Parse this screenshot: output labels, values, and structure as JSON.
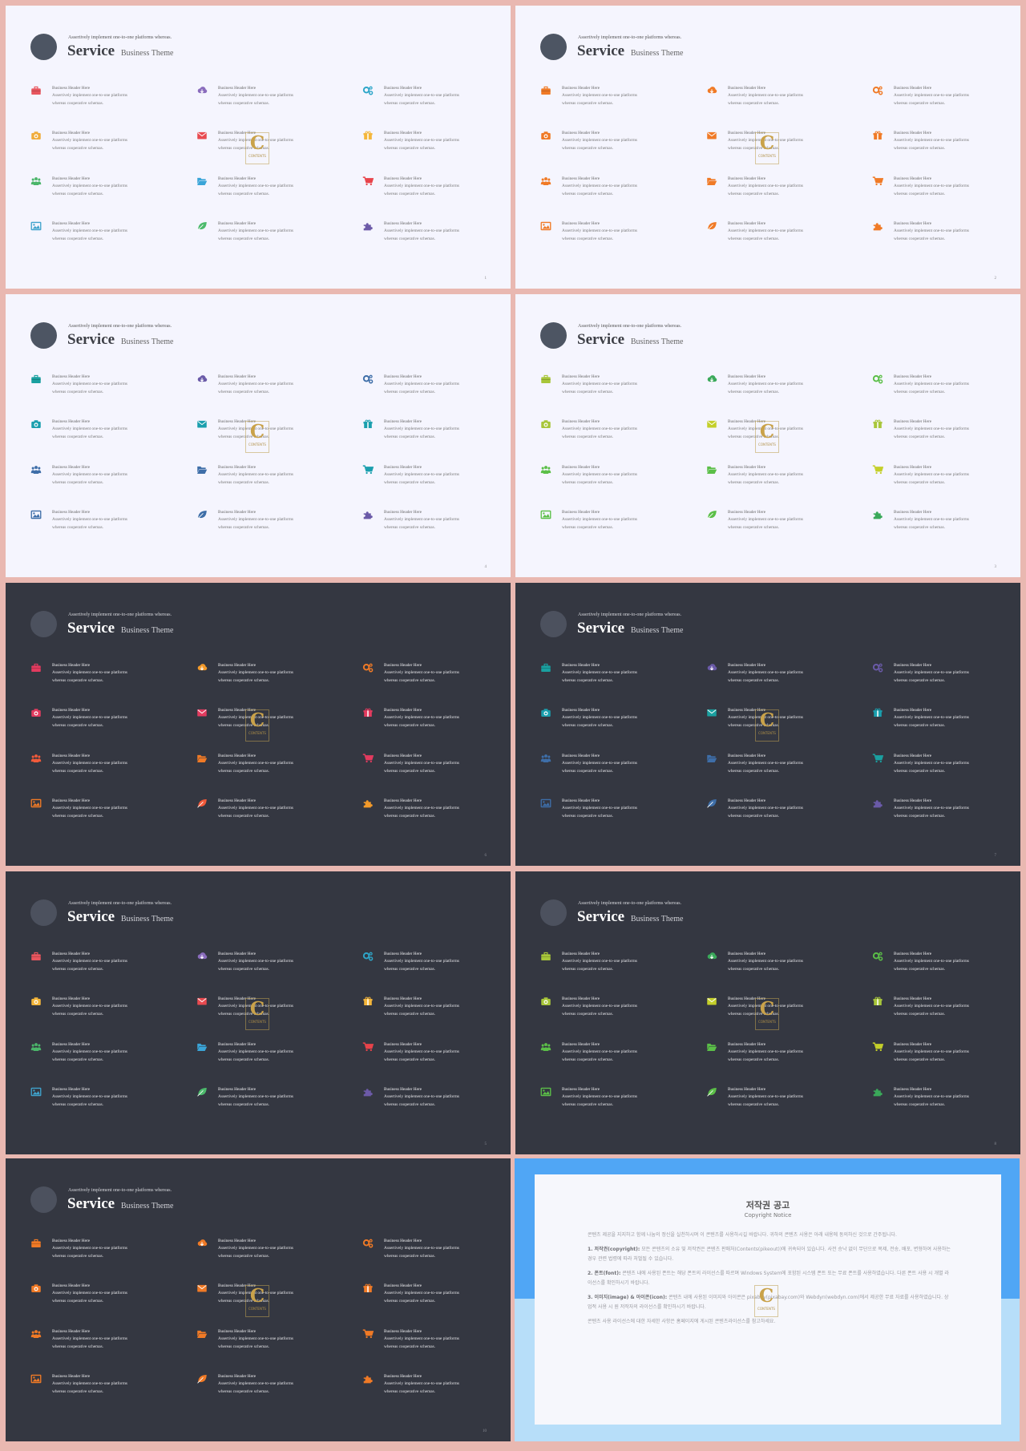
{
  "slide_template": {
    "subtitle": "Assertively implement one-to-one platforms whereas.",
    "title": "Service",
    "theme": "Business Theme",
    "item_header": "Business Header Here",
    "item_body_line1": "Assertively implement one-to-one platforms",
    "item_body_line2": "whereas cooperative schemas."
  },
  "watermark": {
    "letter": "C",
    "text": "CONTENTS"
  },
  "icons": [
    "briefcase-icon",
    "cloud-download-icon",
    "gears-icon",
    "camera-icon",
    "envelope-icon",
    "gift-icon",
    "users-icon",
    "folder-open-icon",
    "shopping-cart-icon",
    "image-icon",
    "leaf-icon",
    "puzzle-icon"
  ],
  "slides": [
    {
      "page": "1",
      "theme": "light",
      "colors": [
        "#e8565e",
        "#8a6cbd",
        "#2ea6c9",
        "#f0ac3c",
        "#e84a50",
        "#f4b63a",
        "#4bb56a",
        "#3aa5d8",
        "#e8434a",
        "#3fa3cc",
        "#4cba6c",
        "#6c5aa8"
      ]
    },
    {
      "page": "2",
      "theme": "light",
      "colors": [
        "#f07a26",
        "#f07a26",
        "#f07a26",
        "#f07a26",
        "#f07a26",
        "#f07a26",
        "#f07a26",
        "#f07a26",
        "#f07a26",
        "#f07a26",
        "#f07a26",
        "#f07a26"
      ]
    },
    {
      "page": "4",
      "theme": "light",
      "colors": [
        "#1aa0a0",
        "#6a5aa8",
        "#3e6ea8",
        "#1a9fae",
        "#1a9fae",
        "#1a9fae",
        "#3e6ea8",
        "#3e6ea8",
        "#1a9fae",
        "#3e6ea8",
        "#3e6ea8",
        "#6a5aa8"
      ]
    },
    {
      "page": "3",
      "theme": "light",
      "colors": [
        "#a8c63a",
        "#3aa95a",
        "#5bbf48",
        "#a8c63a",
        "#c4cf2a",
        "#a8c63a",
        "#5bbf48",
        "#5bbf48",
        "#c4cf2a",
        "#5bbf48",
        "#5bbf48",
        "#3aa95a"
      ]
    },
    {
      "page": "6",
      "theme": "dark",
      "colors": [
        "#e33b5f",
        "#f39a2a",
        "#f07a26",
        "#e33b5f",
        "#e33b5f",
        "#e33b5f",
        "#f25a3a",
        "#f07a26",
        "#e33b5f",
        "#f07a26",
        "#f25a3a",
        "#f39a2a"
      ]
    },
    {
      "page": "7",
      "theme": "dark",
      "colors": [
        "#1aa0a0",
        "#6a5aa8",
        "#6a5aa8",
        "#1a9fae",
        "#1aa0a0",
        "#1a9fae",
        "#3e6ea8",
        "#3e6ea8",
        "#1aa0a0",
        "#3e6ea8",
        "#3e6ea8",
        "#6a5aa8"
      ]
    },
    {
      "page": "5",
      "theme": "dark",
      "colors": [
        "#e8565e",
        "#8a6cbd",
        "#2ea6c9",
        "#f4b63a",
        "#e84a50",
        "#f4b63a",
        "#4bb56a",
        "#3aa5d8",
        "#e8434a",
        "#3fa3cc",
        "#4cba6c",
        "#6c5aa8"
      ]
    },
    {
      "page": "8",
      "theme": "dark",
      "colors": [
        "#a8c63a",
        "#3aa95a",
        "#5bbf48",
        "#a8c63a",
        "#c4cf2a",
        "#a8c63a",
        "#5bbf48",
        "#5bbf48",
        "#c4cf2a",
        "#5bbf48",
        "#5bbf48",
        "#3aa95a"
      ]
    },
    {
      "page": "10",
      "theme": "dark",
      "colors": [
        "#f07a26",
        "#f07a26",
        "#f07a26",
        "#f07a26",
        "#f07a26",
        "#f07a26",
        "#f07a26",
        "#f07a26",
        "#f07a26",
        "#f07a26",
        "#f07a26",
        "#f07a26"
      ]
    }
  ],
  "copyright": {
    "title": "저작권 공고",
    "subtitle": "Copyright Notice",
    "intro": "콘텐츠 제공을 지지하고 함께 나눔의 정신을 실천하시며 이 콘텐츠를 사용하시길 바랍니다. 귀하의 콘텐츠 사용은 아래 내용에 동의하신 것으로 간주됩니다.",
    "p1_label": "1. 저작권(copyright):",
    "p1": " 모든 콘텐츠의 소유 및 저작권은 콘텐츠 판매처(Contents(pikeout))에 귀속되어 있습니다. 사전 승낙 없이 무단으로 복제, 전송, 배포, 변형하여 사용하는 경우 관련 법령에 따라 처벌될 수 있습니다.",
    "p2_label": "2. 폰트(font):",
    "p2": " 콘텐츠 내에 사용된 폰트는 해당 폰트의 라이선스를 따르며 Windows System에 포함된 시스템 폰트 또는 무료 폰트를 사용하였습니다. 다른 폰트 사용 시 개별 라이선스를 확인하시기 바랍니다.",
    "p3_label": "3. 이미지(image) & 아이콘(icon):",
    "p3": " 콘텐츠 내에 사용된 이미지와 아이콘은 pixabay(pixabay.com)와 Webdyn(webdyn.com)에서 제공한 무료 자료를 사용하였습니다. 상업적 사용 시 원 저작자의 라이선스를 확인하시기 바랍니다.",
    "outro": "콘텐츠 사용 라이선스에 대한 자세한 사항은 홈페이지에 게시된 콘텐츠라이선스를 참고하세요."
  }
}
